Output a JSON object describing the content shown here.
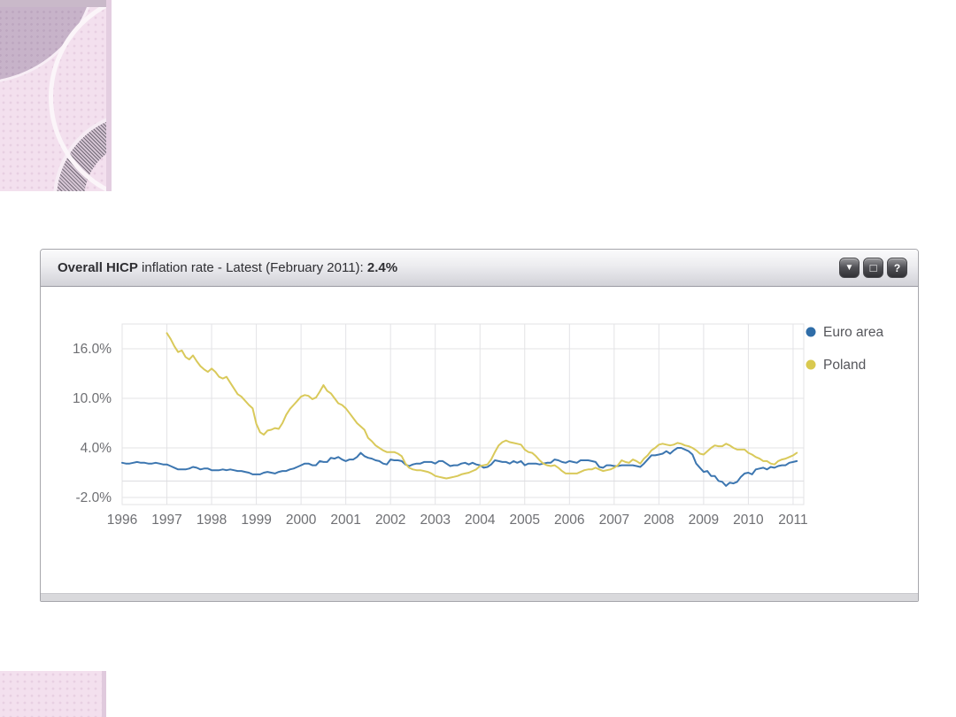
{
  "decor": {
    "panel_color": "#f3e0ee",
    "top_strip_color": "#c9b9c9",
    "leaf_color": "#c7b3c9",
    "dark_ring_color": "#746b78",
    "white_arc_color": "#fbf5f9",
    "bottom_block_color": "#f3e0ee"
  },
  "widget": {
    "header": {
      "title_bold": "Overall HICP",
      "title_rest": " inflation rate - Latest (February 2011): ",
      "latest_value": "2.4%",
      "buttons": [
        {
          "name": "download",
          "glyph": "▼"
        },
        {
          "name": "minimize",
          "glyph": "□"
        },
        {
          "name": "help",
          "glyph": "?"
        }
      ]
    }
  },
  "chart_data": {
    "type": "line",
    "title": "Overall HICP inflation rate",
    "subtitle": "Latest (February 2011): 2.4%",
    "xlabel": "",
    "ylabel": "",
    "grid": true,
    "legend_position": "top-right",
    "xlim": [
      1996,
      2011.25
    ],
    "ylim": [
      -2.9,
      19
    ],
    "x_ticks": [
      1996,
      1997,
      1998,
      1999,
      2000,
      2001,
      2002,
      2003,
      2004,
      2005,
      2006,
      2007,
      2008,
      2009,
      2010,
      2011
    ],
    "y_ticks": [
      {
        "v": 16,
        "label": "16.0%"
      },
      {
        "v": 10,
        "label": "10.0%"
      },
      {
        "v": 4,
        "label": "4.0%"
      },
      {
        "v": -2,
        "label": "-2.0%"
      }
    ],
    "y_gridlines": [
      16,
      10,
      4,
      0,
      -2
    ],
    "axis_color": "#6e6f73",
    "grid_color": "#e3e3e6",
    "series": [
      {
        "name": "Euro area",
        "color": "#2f6da8",
        "line_color": "#3c76b0",
        "start_year": 1996,
        "start_month": 1,
        "unit": "percent, monthly",
        "values": [
          2.2,
          2.1,
          2.1,
          2.2,
          2.3,
          2.2,
          2.2,
          2.1,
          2.1,
          2.2,
          2.1,
          2.0,
          2.0,
          1.8,
          1.6,
          1.4,
          1.4,
          1.4,
          1.5,
          1.7,
          1.6,
          1.4,
          1.5,
          1.5,
          1.3,
          1.3,
          1.3,
          1.4,
          1.3,
          1.4,
          1.3,
          1.2,
          1.2,
          1.1,
          1.0,
          0.8,
          0.8,
          0.8,
          1.0,
          1.1,
          1.0,
          0.9,
          1.1,
          1.2,
          1.2,
          1.4,
          1.5,
          1.7,
          1.9,
          2.1,
          2.1,
          1.9,
          1.9,
          2.4,
          2.3,
          2.3,
          2.8,
          2.7,
          2.9,
          2.6,
          2.4,
          2.6,
          2.6,
          2.9,
          3.4,
          3.0,
          2.8,
          2.7,
          2.5,
          2.4,
          2.1,
          2.0,
          2.6,
          2.5,
          2.5,
          2.4,
          2.0,
          1.8,
          2.0,
          2.1,
          2.1,
          2.3,
          2.3,
          2.3,
          2.1,
          2.4,
          2.4,
          2.1,
          1.8,
          1.9,
          1.9,
          2.1,
          2.2,
          2.0,
          2.2,
          2.0,
          1.9,
          1.6,
          1.7,
          2.0,
          2.5,
          2.4,
          2.3,
          2.3,
          2.1,
          2.4,
          2.2,
          2.4,
          1.9,
          2.1,
          2.1,
          2.1,
          2.0,
          2.1,
          2.2,
          2.2,
          2.6,
          2.5,
          2.3,
          2.2,
          2.4,
          2.3,
          2.2,
          2.5,
          2.5,
          2.5,
          2.4,
          2.3,
          1.7,
          1.6,
          1.9,
          1.9,
          1.8,
          1.8,
          1.9,
          1.9,
          1.9,
          1.9,
          1.8,
          1.7,
          2.1,
          2.6,
          3.1,
          3.1,
          3.2,
          3.3,
          3.6,
          3.3,
          3.7,
          4.0,
          4.0,
          3.8,
          3.6,
          3.2,
          2.1,
          1.6,
          1.1,
          1.2,
          0.6,
          0.6,
          0.0,
          -0.1,
          -0.6,
          -0.2,
          -0.3,
          -0.1,
          0.5,
          0.9,
          1.0,
          0.8,
          1.4,
          1.5,
          1.6,
          1.4,
          1.7,
          1.6,
          1.8,
          1.9,
          1.9,
          2.2,
          2.3,
          2.4
        ]
      },
      {
        "name": "Poland",
        "color": "#d9c94f",
        "line_color": "#d9c95a",
        "start_year": 1997,
        "start_month": 1,
        "unit": "percent, monthly",
        "values": [
          17.9,
          17.2,
          16.3,
          15.6,
          15.8,
          15.0,
          14.7,
          15.2,
          14.5,
          13.9,
          13.5,
          13.2,
          13.6,
          13.2,
          12.6,
          12.4,
          12.6,
          11.9,
          11.2,
          10.5,
          10.2,
          9.7,
          9.2,
          8.8,
          6.9,
          5.9,
          5.6,
          6.1,
          6.2,
          6.4,
          6.3,
          7.0,
          8.0,
          8.7,
          9.2,
          9.7,
          10.2,
          10.4,
          10.3,
          9.9,
          10.1,
          10.8,
          11.6,
          10.9,
          10.6,
          10.0,
          9.4,
          9.2,
          8.8,
          8.2,
          7.6,
          7.0,
          6.6,
          6.2,
          5.2,
          4.8,
          4.3,
          4.0,
          3.7,
          3.5,
          3.5,
          3.5,
          3.3,
          3.0,
          2.1,
          1.6,
          1.4,
          1.3,
          1.3,
          1.2,
          1.1,
          0.9,
          0.6,
          0.5,
          0.4,
          0.3,
          0.4,
          0.5,
          0.6,
          0.8,
          0.9,
          1.0,
          1.2,
          1.4,
          1.8,
          1.9,
          2.0,
          2.6,
          3.5,
          4.3,
          4.7,
          4.9,
          4.7,
          4.6,
          4.5,
          4.4,
          3.8,
          3.5,
          3.4,
          3.0,
          2.5,
          2.1,
          1.9,
          1.8,
          1.9,
          1.6,
          1.2,
          0.9,
          0.9,
          0.9,
          0.9,
          1.1,
          1.3,
          1.4,
          1.4,
          1.6,
          1.4,
          1.2,
          1.3,
          1.4,
          1.6,
          1.9,
          2.5,
          2.3,
          2.2,
          2.6,
          2.4,
          2.1,
          2.7,
          3.1,
          3.7,
          4.0,
          4.4,
          4.5,
          4.4,
          4.3,
          4.4,
          4.6,
          4.5,
          4.3,
          4.2,
          4.0,
          3.7,
          3.3,
          3.2,
          3.6,
          4.0,
          4.3,
          4.2,
          4.2,
          4.5,
          4.3,
          4.0,
          3.8,
          3.8,
          3.8,
          3.4,
          3.2,
          2.9,
          2.7,
          2.4,
          2.4,
          2.1,
          2.0,
          2.4,
          2.6,
          2.7,
          2.9,
          3.1,
          3.4
        ]
      }
    ]
  }
}
